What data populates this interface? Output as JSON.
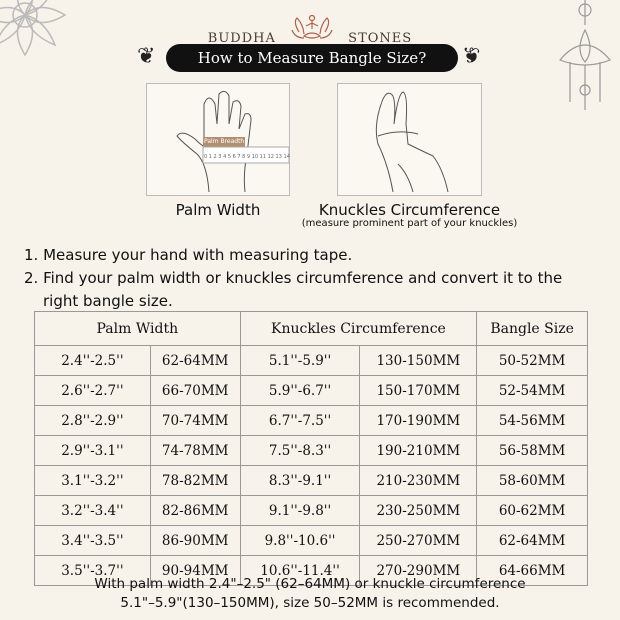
{
  "brand": {
    "left": "BUDDHA",
    "right": "STONES"
  },
  "title": "How to Measure Bangle Size?",
  "images": [
    {
      "caption": "Palm Width",
      "label": "Palm Breadth",
      "ruler": "0 1 2 3 4 5 6 7 8 9 10 11 12 13 14"
    },
    {
      "caption": "Knuckles Circumference",
      "subcaption": "(measure prominent part of your knuckles)"
    }
  ],
  "steps": [
    "1. Measure your hand with measuring tape.",
    "2. Find your palm width or knuckles circumference and convert it to the",
    "right bangle size."
  ],
  "table": {
    "headers": [
      "Palm Width",
      "Knuckles Circumference",
      "Bangle Size"
    ],
    "rows": [
      [
        "2.4''-2.5''",
        "62-64MM",
        "5.1''-5.9''",
        "130-150MM",
        "50-52MM"
      ],
      [
        "2.6''-2.7''",
        "66-70MM",
        "5.9''-6.7''",
        "150-170MM",
        "52-54MM"
      ],
      [
        "2.8''-2.9''",
        "70-74MM",
        "6.7''-7.5''",
        "170-190MM",
        "54-56MM"
      ],
      [
        "2.9''-3.1''",
        "74-78MM",
        "7.5''-8.3''",
        "190-210MM",
        "56-58MM"
      ],
      [
        "3.1''-3.2''",
        "78-82MM",
        "8.3''-9.1''",
        "210-230MM",
        "58-60MM"
      ],
      [
        "3.2''-3.4''",
        "82-86MM",
        "9.1''-9.8''",
        "230-250MM",
        "60-62MM"
      ],
      [
        "3.4''-3.5''",
        "86-90MM",
        "9.8''-10.6''",
        "250-270MM",
        "62-64MM"
      ],
      [
        "3.5''-3.7''",
        "90-94MM",
        "10.6''-11.4''",
        "270-290MM",
        "64-66MM"
      ]
    ]
  },
  "note": [
    "With palm width 2.4\"–2.5\" (62–64MM) or knuckle circumference",
    "5.1\"–5.9\"(130–150MM), size 50–52MM is recommended."
  ]
}
